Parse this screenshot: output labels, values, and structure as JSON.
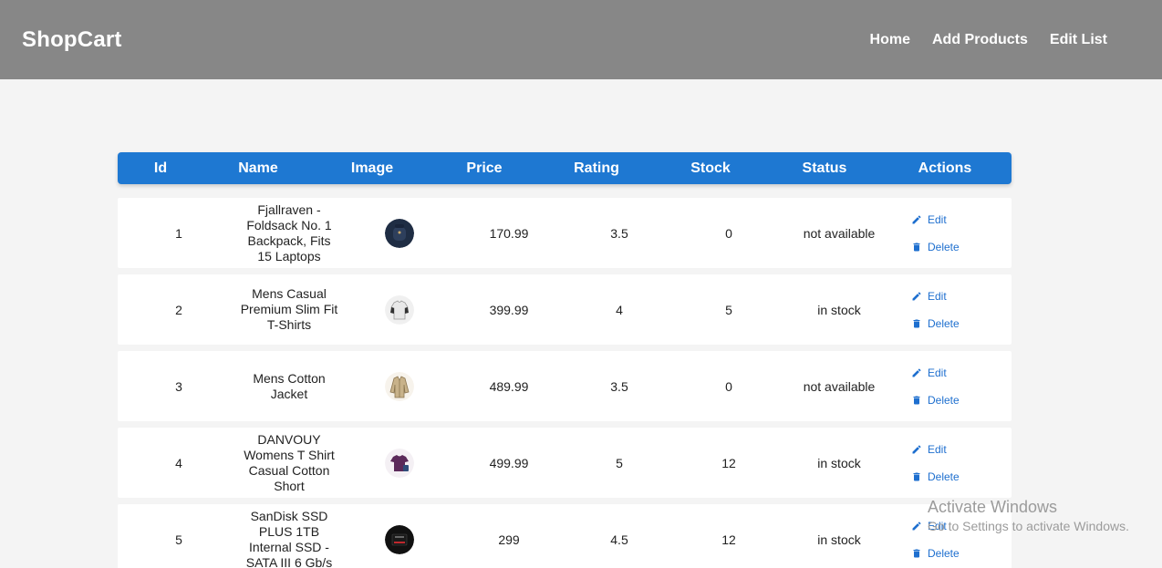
{
  "navbar": {
    "brand": "ShopCart",
    "links": [
      "Home",
      "Add Products",
      "Edit List"
    ]
  },
  "table": {
    "headers": [
      "Id",
      "Name",
      "Image",
      "Price",
      "Rating",
      "Stock",
      "Status",
      "Actions"
    ],
    "rows": [
      {
        "id": "1",
        "name": "Fjallraven - Foldsack No. 1 Backpack, Fits 15 Laptops",
        "image": "backpack-icon",
        "price": "170.99",
        "rating": "3.5",
        "stock": "0",
        "status": "not available"
      },
      {
        "id": "2",
        "name": "Mens Casual Premium Slim Fit T-Shirts",
        "image": "tshirt-icon",
        "price": "399.99",
        "rating": "4",
        "stock": "5",
        "status": "in stock"
      },
      {
        "id": "3",
        "name": "Mens Cotton Jacket",
        "image": "jacket-icon",
        "price": "489.99",
        "rating": "3.5",
        "stock": "0",
        "status": "not available"
      },
      {
        "id": "4",
        "name": "DANVOUY Womens T Shirt Casual Cotton Short",
        "image": "womens-tshirt-icon",
        "price": "499.99",
        "rating": "5",
        "stock": "12",
        "status": "in stock"
      },
      {
        "id": "5",
        "name": "SanDisk SSD PLUS 1TB Internal SSD - SATA III 6 Gb/s",
        "image": "ssd-icon",
        "price": "299",
        "rating": "4.5",
        "stock": "12",
        "status": "in stock"
      }
    ],
    "actions": {
      "edit": "Edit",
      "delete": "Delete"
    }
  },
  "colors": {
    "navbar": "#878787",
    "header": "#1e78d2",
    "action": "#1e6fcf"
  },
  "watermark": {
    "title": "Activate Windows",
    "subtitle": "Go to Settings to activate Windows."
  }
}
